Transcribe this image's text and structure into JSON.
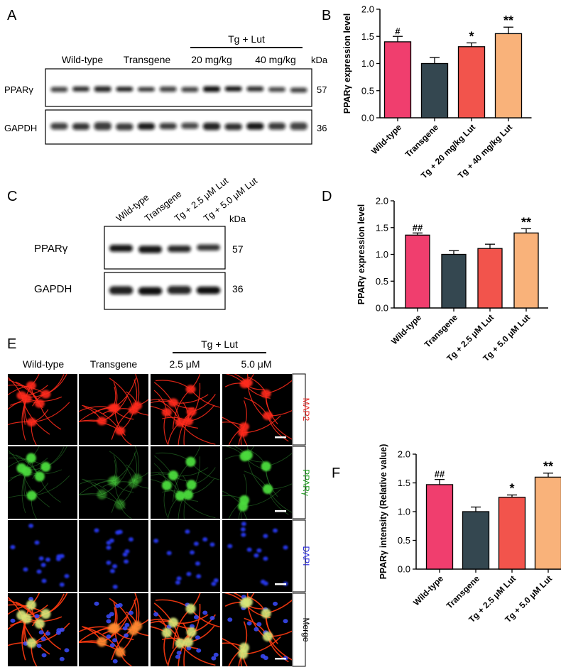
{
  "panel_letters": [
    "A",
    "B",
    "C",
    "D",
    "E",
    "F"
  ],
  "panel_a": {
    "treatment_label": "Tg + Lut",
    "groups": [
      "Wild-type",
      "Transgene",
      "20 mg/kg",
      "40 mg/kg"
    ],
    "kda_label": "kDa",
    "blots": [
      {
        "label": "PPARγ",
        "kda": "57"
      },
      {
        "label": "GAPDH",
        "kda": "36"
      }
    ]
  },
  "panel_c": {
    "groups": [
      "Wild-type",
      "Transgene",
      "Tg + 2.5 μM Lut",
      "Tg + 5.0 μM Lut"
    ],
    "kda_label": "kDa",
    "blots": [
      {
        "label": "PPARγ",
        "kda": "57"
      },
      {
        "label": "GAPDH",
        "kda": "36"
      }
    ]
  },
  "panel_e": {
    "treatment_label": "Tg + Lut",
    "columns": [
      "Wild-type",
      "Transgene",
      "2.5 μM",
      "5.0 μM"
    ],
    "rows": [
      {
        "label": "MAP2",
        "color": "#e8201c"
      },
      {
        "label": "PPARγ",
        "color": "#1a9a1a"
      },
      {
        "label": "DAPI",
        "color": "#2222dd"
      },
      {
        "label": "Merge",
        "color": "#000000"
      }
    ]
  },
  "chart_data": [
    {
      "panel": "B",
      "type": "bar",
      "categories": [
        "Wild-type",
        "Transgene",
        "Tg + 20 mg/kg Lut",
        "Tg + 40 mg/kg Lut"
      ],
      "values": [
        1.4,
        1.0,
        1.31,
        1.55
      ],
      "errors": [
        0.1,
        0.11,
        0.07,
        0.12
      ],
      "annotations": [
        "#",
        "",
        "*",
        "**"
      ],
      "colors": [
        "#f03e6e",
        "#344750",
        "#f2544c",
        "#f9b27a"
      ],
      "xlabel": "",
      "ylabel": "PPARγ expression level",
      "ylim": [
        0,
        2.0
      ],
      "yticks": [
        "0.0",
        "0.5",
        "1.0",
        "1.5",
        "2.0"
      ]
    },
    {
      "panel": "D",
      "type": "bar",
      "categories": [
        "Wild-type",
        "Transgene",
        "Tg + 2.5 μM Lut",
        "Tg + 5.0 μM Lut"
      ],
      "values": [
        1.36,
        1.0,
        1.11,
        1.4
      ],
      "errors": [
        0.04,
        0.07,
        0.08,
        0.08
      ],
      "annotations": [
        "##",
        "",
        "",
        "**"
      ],
      "colors": [
        "#f03e6e",
        "#344750",
        "#f2544c",
        "#f9b27a"
      ],
      "xlabel": "",
      "ylabel": "PPARγ expression level",
      "ylim": [
        0,
        2.0
      ],
      "yticks": [
        "0.0",
        "0.5",
        "1.0",
        "1.5",
        "2.0"
      ]
    },
    {
      "panel": "F",
      "type": "bar",
      "categories": [
        "Wild-type",
        "Transgene",
        "Tg + 2.5 μM Lut",
        "Tg + 5.0 μM Lut"
      ],
      "values": [
        1.47,
        1.0,
        1.25,
        1.6
      ],
      "errors": [
        0.09,
        0.08,
        0.04,
        0.07
      ],
      "annotations": [
        "##",
        "",
        "*",
        "**"
      ],
      "colors": [
        "#f03e6e",
        "#344750",
        "#f2544c",
        "#f9b27a"
      ],
      "xlabel": "",
      "ylabel": "PPARγ intensity (Relative value)",
      "ylim": [
        0,
        2.0
      ],
      "yticks": [
        "0.0",
        "0.5",
        "1.0",
        "1.5",
        "2.0"
      ]
    }
  ]
}
